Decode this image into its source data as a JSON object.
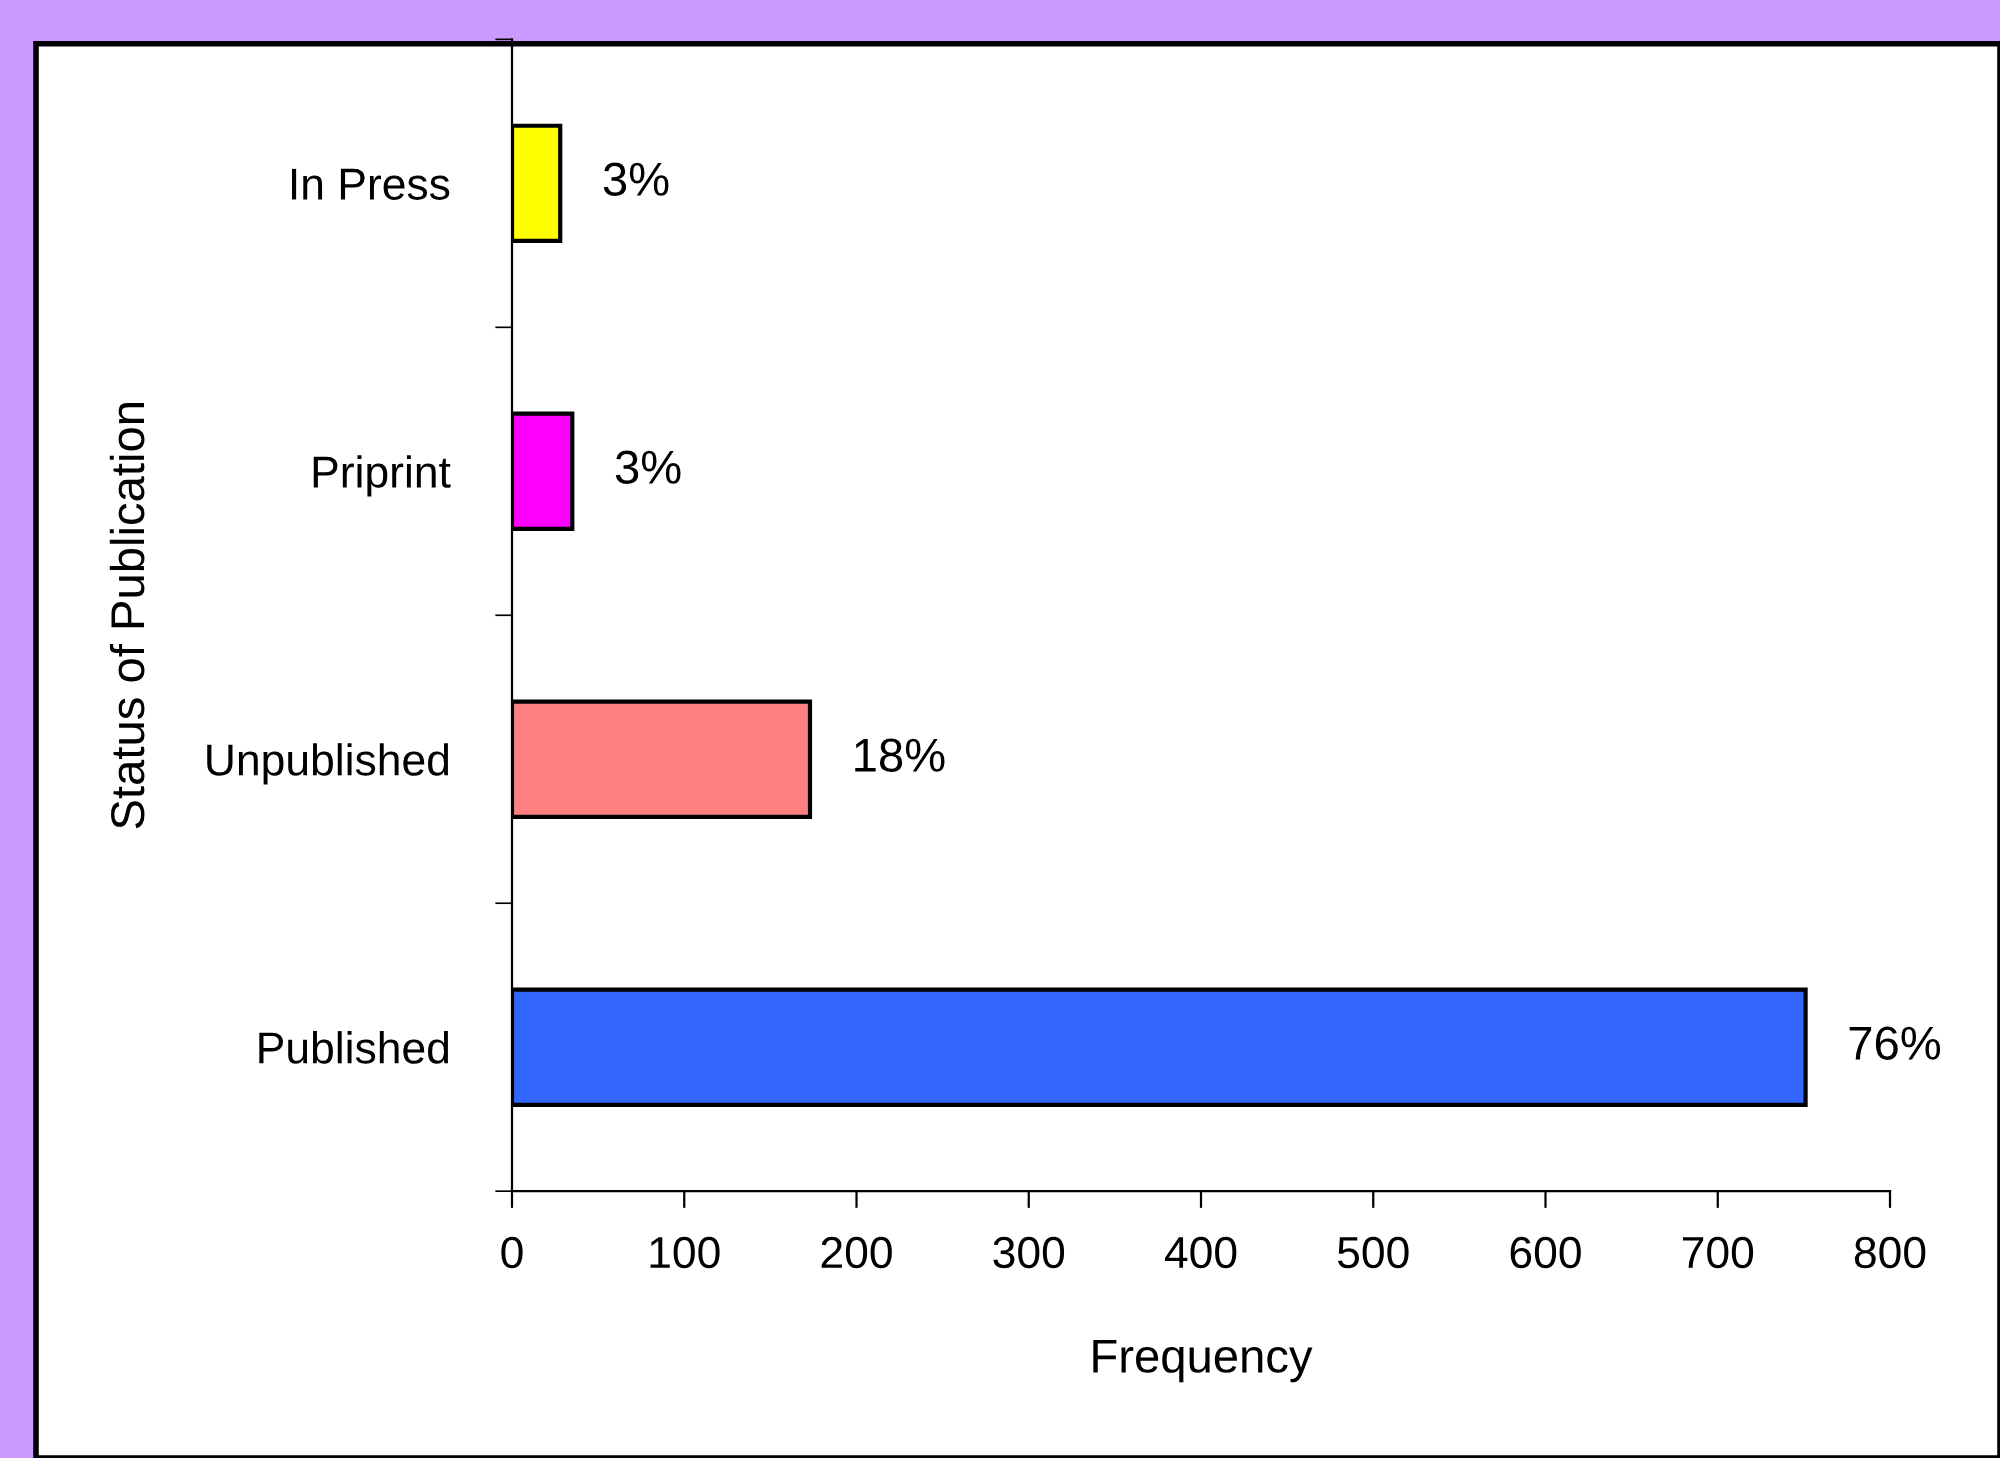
{
  "chart_data": {
    "type": "bar",
    "orientation": "horizontal",
    "categories": [
      "In Press",
      "Priprint",
      "Unpublished",
      "Published"
    ],
    "values": [
      28,
      35,
      173,
      751
    ],
    "colors": [
      "#ffff00",
      "#ff00ff",
      "#ff8080",
      "#3366ff"
    ],
    "annotations": [
      {
        "text": "3%",
        "x": 28,
        "y": "In Press"
      },
      {
        "text": "3%",
        "x": 35,
        "y": "Priprint"
      },
      {
        "text": "18%",
        "x": 173,
        "y": "Unpublished"
      },
      {
        "text": "76%",
        "x": 751,
        "y": "Published"
      }
    ],
    "xlabel": "Frequency",
    "ylabel": "Status of Publication",
    "xlim": [
      0,
      800
    ],
    "xticks": [
      0,
      100,
      200,
      300,
      400,
      500,
      600,
      700,
      800
    ],
    "grid": false,
    "legend": false
  }
}
